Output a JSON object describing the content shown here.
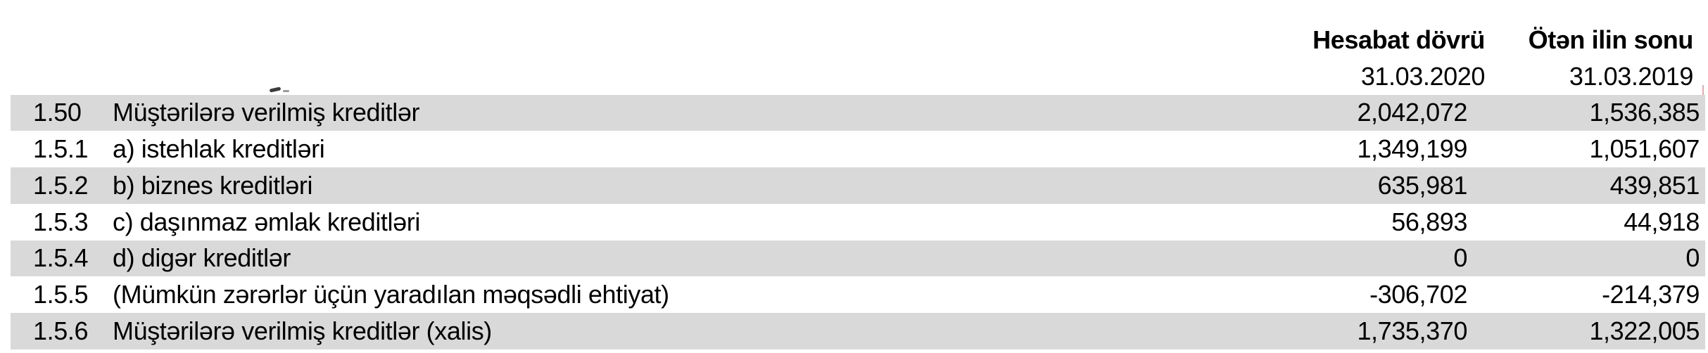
{
  "table": {
    "header": {
      "col1_label": "Hesabat dövrü",
      "col2_label": "Ötən ilin sonu",
      "col1_date": "31.03.2020",
      "col2_date": "31.03.2019"
    },
    "rows": [
      {
        "code": "1.50",
        "label": "Müştərilərə verilmiş kreditlər",
        "current": "2,042,072",
        "previous": "1,536,385"
      },
      {
        "code": "1.5.1",
        "label": "a) istehlak kreditləri",
        "current": "1,349,199",
        "previous": "1,051,607"
      },
      {
        "code": "1.5.2",
        "label": "b) biznes kreditləri",
        "current": "635,981",
        "previous": "439,851"
      },
      {
        "code": "1.5.3",
        "label": "c) daşınmaz əmlak kreditləri",
        "current": "56,893",
        "previous": "44,918"
      },
      {
        "code": "1.5.4",
        "label": "d) digər kreditlər",
        "current": "0",
        "previous": "0"
      },
      {
        "code": "1.5.5",
        "label": "(Mümkün zərərlər üçün yaradılan məqsədli ehtiyat)",
        "current": "-306,702",
        "previous": "-214,379"
      },
      {
        "code": "1.5.6",
        "label": "Müştərilərə verilmiş kreditlər (xalis)",
        "current": "1,735,370",
        "previous": "1,322,005"
      }
    ],
    "colors": {
      "row_shade": "#d9d9d9",
      "text": "#000000",
      "page_break_line": "#eda6ad"
    }
  }
}
